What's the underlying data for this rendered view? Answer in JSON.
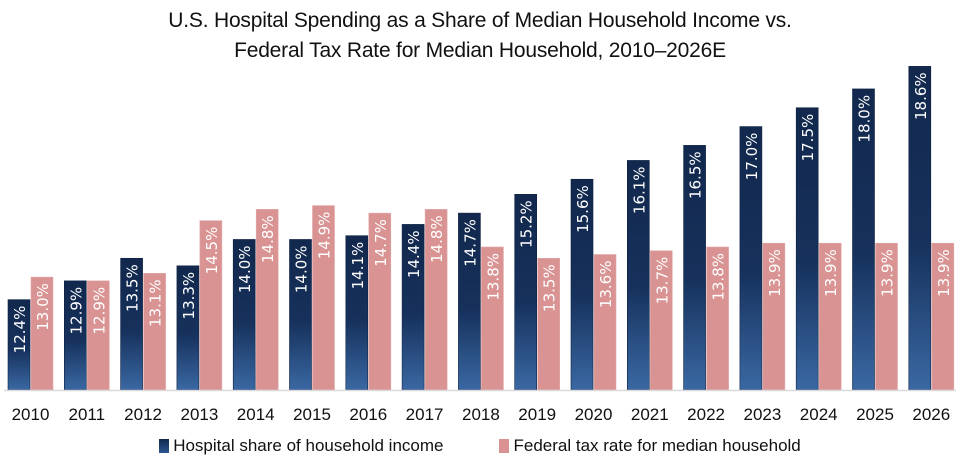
{
  "chart_data": {
    "type": "bar",
    "title": "U.S. Hospital Spending as a Share of Median Household Income vs. Federal Tax Rate for Median Household, 2010–2026E",
    "title_lines": [
      "U.S. Hospital Spending as a Share of Median Household Income vs.",
      "Federal Tax Rate for Median Household, 2010–2026E"
    ],
    "xlabel": "",
    "ylabel": "",
    "ylim": [
      10,
      19.3
    ],
    "grid": false,
    "legend_position": "bottom",
    "categories": [
      "2010",
      "2011",
      "2012",
      "2013",
      "2014",
      "2015",
      "2016",
      "2017",
      "2018",
      "2019",
      "2020",
      "2021",
      "2022",
      "2023",
      "2024",
      "2025",
      "2026"
    ],
    "series": [
      {
        "name": "Hospital share of household income",
        "color": "#15305a",
        "values": [
          12.4,
          12.9,
          13.5,
          13.3,
          14.0,
          14.0,
          14.1,
          14.4,
          14.7,
          15.2,
          15.6,
          16.1,
          16.5,
          17.0,
          17.5,
          18.0,
          18.6
        ],
        "labels": [
          "12.4%",
          "12.9%",
          "13.5%",
          "13.3%",
          "14.0%",
          "14.0%",
          "14.1%",
          "14.4%",
          "14.7%",
          "15.2%",
          "15.6%",
          "16.1%",
          "16.5%",
          "17.0%",
          "17.5%",
          "18.0%",
          "18.6%"
        ]
      },
      {
        "name": "Federal tax rate for median household",
        "color": "#d99393",
        "values": [
          13.0,
          12.9,
          13.1,
          14.5,
          14.8,
          14.9,
          14.7,
          14.8,
          13.8,
          13.5,
          13.6,
          13.7,
          13.8,
          13.9,
          13.9,
          13.9,
          13.9
        ],
        "labels": [
          "13.0%",
          "12.9%",
          "13.1%",
          "14.5%",
          "14.8%",
          "14.9%",
          "14.7%",
          "14.8%",
          "13.8%",
          "13.5%",
          "13.6%",
          "13.7%",
          "13.8%",
          "13.9%",
          "13.9%",
          "13.9%",
          "13.9%"
        ]
      }
    ]
  }
}
